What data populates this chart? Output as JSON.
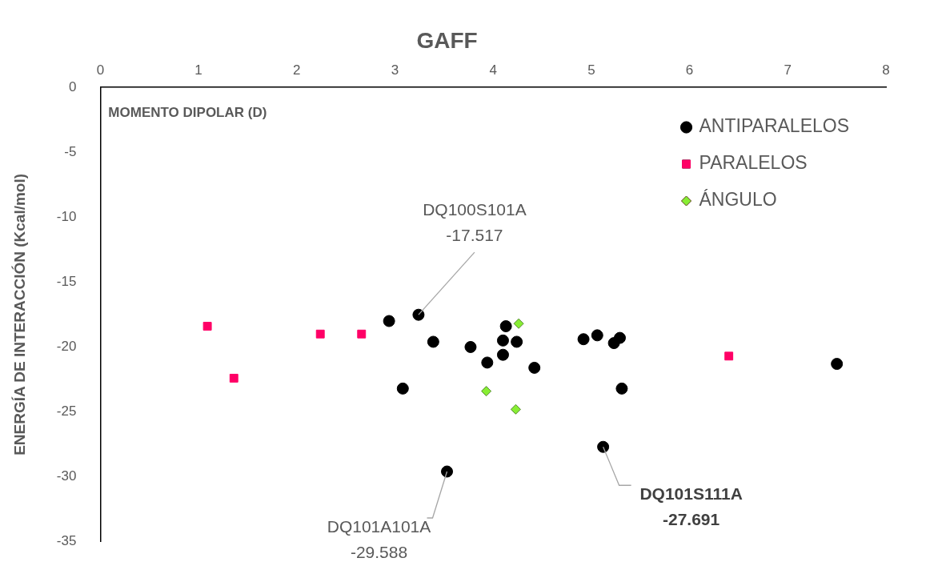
{
  "chart_data": {
    "type": "scatter",
    "title": "GAFF",
    "xlabel": "MOMENTO DIPOLAR (D)",
    "ylabel": "ENERGÍA DE INTERACCIÓN (Kcal/mol)",
    "xlim": [
      0,
      8
    ],
    "xticks": [
      0,
      1,
      2,
      3,
      4,
      5,
      6,
      7,
      8
    ],
    "ylim": [
      -35,
      0
    ],
    "yticks": [
      -35,
      -30,
      -25,
      -20,
      -15,
      -10,
      -5,
      0
    ],
    "grid": false,
    "legend": "top right",
    "series": [
      {
        "name": "ANTIPARALELOS",
        "color": "#000000",
        "marker": "circle",
        "x": [
          2.94,
          3.24,
          3.39,
          3.08,
          3.53,
          3.77,
          3.94,
          4.13,
          4.1,
          4.1,
          4.24,
          4.42,
          4.92,
          5.06,
          5.23,
          5.29,
          5.31,
          5.12,
          7.5
        ],
        "values": [
          -18.0,
          -17.517,
          -19.6,
          -23.2,
          -29.588,
          -20.0,
          -21.2,
          -18.4,
          -19.5,
          -20.6,
          -19.6,
          -21.6,
          -19.4,
          -19.1,
          -19.7,
          -19.3,
          -23.2,
          -27.691,
          -21.3
        ]
      },
      {
        "name": "PARALELOS",
        "color": "#ff0066",
        "marker": "square",
        "x": [
          1.09,
          1.36,
          2.24,
          2.66,
          6.4
        ],
        "values": [
          -18.4,
          -22.4,
          -19.0,
          -19.0,
          -20.7
        ]
      },
      {
        "name": "ÁNGULO",
        "color": "#88ee33",
        "marker": "diamond",
        "x": [
          4.26,
          3.93,
          4.23
        ],
        "values": [
          -18.2,
          -23.4,
          -24.8
        ]
      }
    ],
    "annotations": [
      {
        "text": "DQ100S101A\n-17.517",
        "x": 3.24,
        "y": -17.517
      },
      {
        "text": "DQ101A101A\n-29.588",
        "x": 3.53,
        "y": -29.588
      },
      {
        "text": "DQ101S111A\n-27.691",
        "x": 5.12,
        "y": -27.691
      }
    ]
  }
}
